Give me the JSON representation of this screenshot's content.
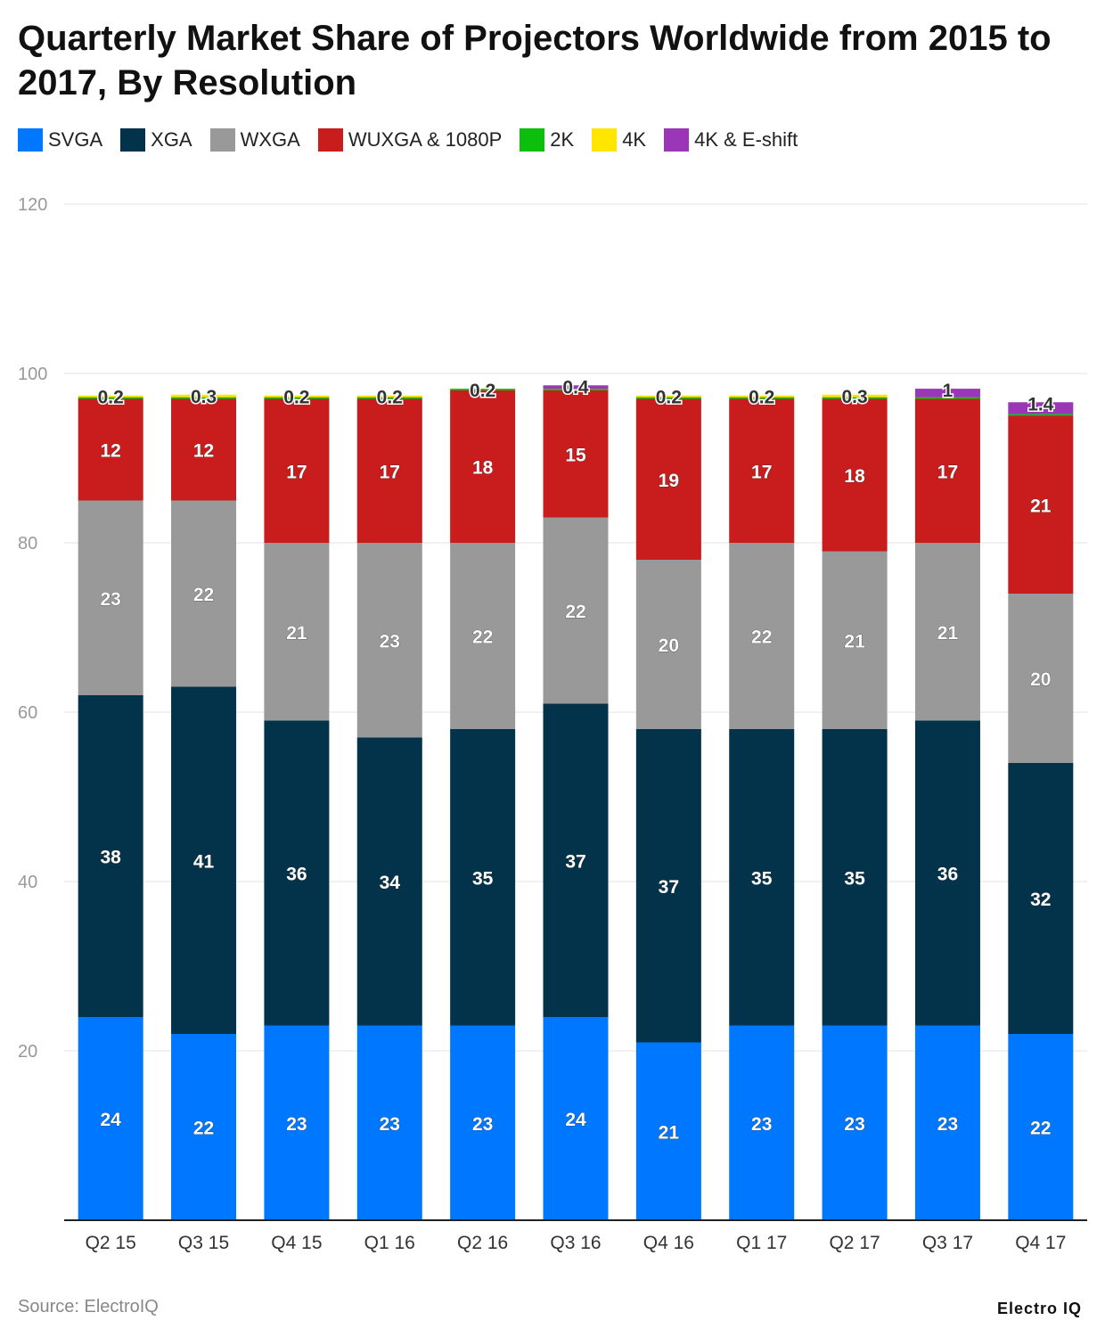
{
  "chart_data": {
    "type": "bar",
    "stacked": true,
    "title": "Quarterly Market Share of Projectors Worldwide from 2015 to 2017, By Resolution",
    "categories": [
      "Q2 15",
      "Q3 15",
      "Q4 15",
      "Q1 16",
      "Q2 16",
      "Q3 16",
      "Q4 16",
      "Q1 17",
      "Q2 17",
      "Q3 17",
      "Q4 17"
    ],
    "series": [
      {
        "name": "SVGA",
        "color": "#0077ff",
        "values": [
          24,
          22,
          23,
          23,
          23,
          24,
          21,
          23,
          23,
          23,
          22
        ]
      },
      {
        "name": "XGA",
        "color": "#02334a",
        "values": [
          38,
          41,
          36,
          34,
          35,
          37,
          37,
          35,
          35,
          36,
          32
        ]
      },
      {
        "name": "WXGA",
        "color": "#999999",
        "values": [
          23,
          22,
          21,
          23,
          22,
          22,
          20,
          22,
          21,
          21,
          20
        ]
      },
      {
        "name": "WUXGA & 1080P",
        "color": "#c91c1c",
        "values": [
          12,
          12,
          17,
          17,
          18,
          15,
          19,
          17,
          18,
          17,
          21
        ]
      },
      {
        "name": "2K",
        "color": "#0cbf0c",
        "values": [
          0.2,
          0.2,
          0.2,
          0.2,
          0.2,
          0.2,
          0.2,
          0.2,
          0.2,
          0.2,
          0.2
        ]
      },
      {
        "name": "4K",
        "color": "#ffe600",
        "values": [
          0.2,
          0.3,
          0.2,
          0.2,
          0,
          0,
          0.2,
          0.2,
          0.3,
          0,
          0
        ]
      },
      {
        "name": "4K & E-shift",
        "color": "#9b36b7",
        "values": [
          0,
          0,
          0,
          0,
          0,
          0.4,
          0,
          0,
          0,
          1,
          1.4
        ]
      }
    ],
    "yticks": [
      20,
      40,
      60,
      80,
      100,
      120
    ],
    "ylim": [
      0,
      120
    ],
    "grid": true,
    "legend": "top-left"
  },
  "source": "Source: ElectroIQ",
  "logo": "Electro IQ"
}
